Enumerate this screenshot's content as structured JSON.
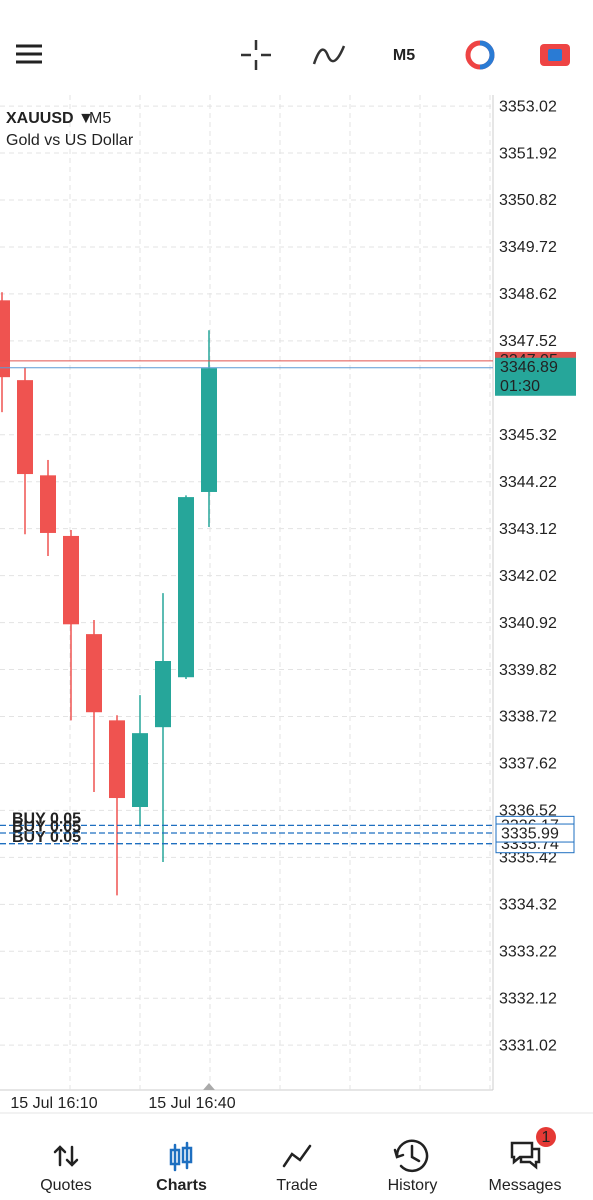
{
  "toolbar": {
    "timeframe": "M5"
  },
  "chart_data": {
    "type": "candlestick",
    "symbol": "XAUUSD",
    "timeframe": "M5",
    "description": "Gold vs US Dollar",
    "categories": [
      null,
      null,
      null,
      "15 Jul 16:10",
      null,
      null,
      null,
      null,
      null,
      "15 Jul 16:40"
    ],
    "open": [
      3348.47,
      3346.6,
      3344.37,
      3342.95,
      3340.65,
      3338.63,
      3336.6,
      3338.47,
      3339.64,
      3343.98
    ],
    "high": [
      3348.66,
      3346.9,
      3344.73,
      3343.09,
      3340.98,
      3338.75,
      3339.22,
      3341.61,
      3343.9,
      3347.77
    ],
    "low": [
      3345.85,
      3342.99,
      3342.48,
      3338.63,
      3336.95,
      3334.53,
      3336.15,
      3335.31,
      3339.6,
      3343.16
    ],
    "close": [
      3346.67,
      3344.4,
      3343.02,
      3340.88,
      3338.82,
      3336.81,
      3338.33,
      3340.02,
      3343.86,
      3346.88
    ],
    "up_color": "#26a69a",
    "down_color": "#ef5350",
    "ylim": [
      3329.97,
      3353.28
    ],
    "yticks": [
      3353.02,
      3351.92,
      3350.82,
      3349.72,
      3348.62,
      3347.52,
      3345.32,
      3344.22,
      3343.12,
      3342.02,
      3340.92,
      3339.82,
      3338.72,
      3337.62,
      3336.52,
      3335.42,
      3334.32,
      3333.22,
      3332.12,
      3331.02
    ],
    "grid": true,
    "orders": [
      {
        "label": "BUY 0.05",
        "price": 3336.17
      },
      {
        "label": "BUY 0.05",
        "price": 3335.74
      },
      {
        "label": "BUY 0.05",
        "price": 3335.99
      }
    ],
    "order_color": "#1e6fc0",
    "ask": {
      "price": 3347.05,
      "color": "#e0534f"
    },
    "bid": {
      "price": 3346.89,
      "color": "#26a69a",
      "countdown": "01:30"
    }
  },
  "nav": {
    "items": [
      "Quotes",
      "Charts",
      "Trade",
      "History",
      "Messages"
    ],
    "active": 1,
    "badge": 1
  }
}
